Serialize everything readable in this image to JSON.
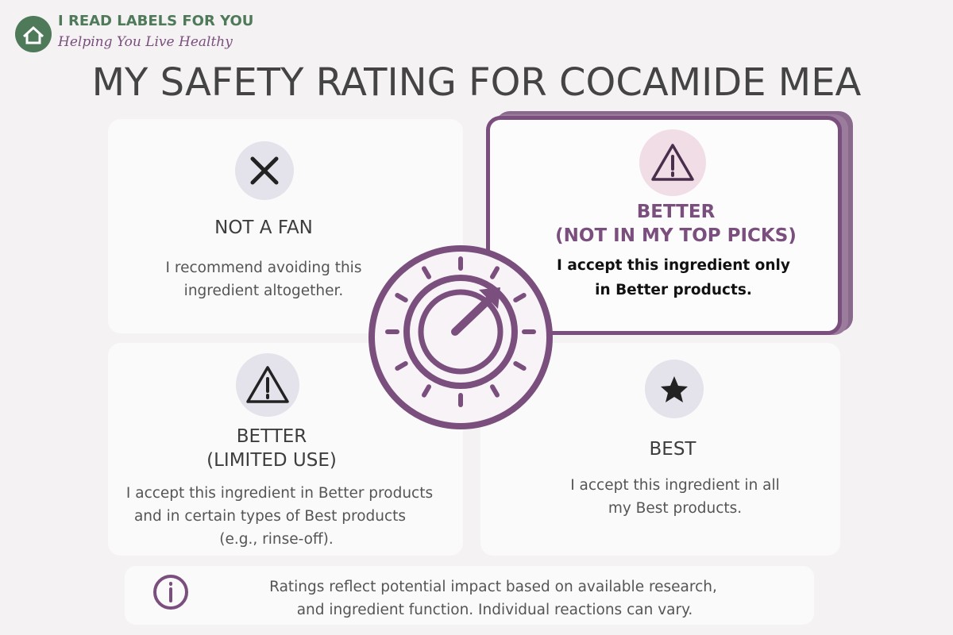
{
  "brand": {
    "name": "I READ LABELS FOR YOU",
    "tagline": "Helping You Live Healthy"
  },
  "title": "MY SAFETY RATING FOR COCAMIDE MEA",
  "cards": [
    {
      "title_lines": [
        "NOT A FAN"
      ],
      "text_lines": [
        "I recommend avoiding this",
        "ingredient altogether."
      ]
    },
    {
      "title_lines": [
        "BETTER",
        "(NOT IN MY TOP PICKS)"
      ],
      "text_lines": [
        "I accept this ingredient only",
        "in Better products."
      ]
    },
    {
      "title_lines": [
        "BETTER",
        "(LIMITED USE)"
      ],
      "text_lines": [
        "I accept this ingredient in Better products",
        "and in certain types of Best products",
        "(e.g., rinse-off)."
      ]
    },
    {
      "title_lines": [
        "BEST"
      ],
      "text_lines": [
        "I accept this ingredient in all",
        "my Best products."
      ]
    }
  ],
  "note": {
    "lines": [
      "Ratings reflect potential impact based on available research,",
      "and ingredient function. Individual reactions can vary."
    ]
  }
}
